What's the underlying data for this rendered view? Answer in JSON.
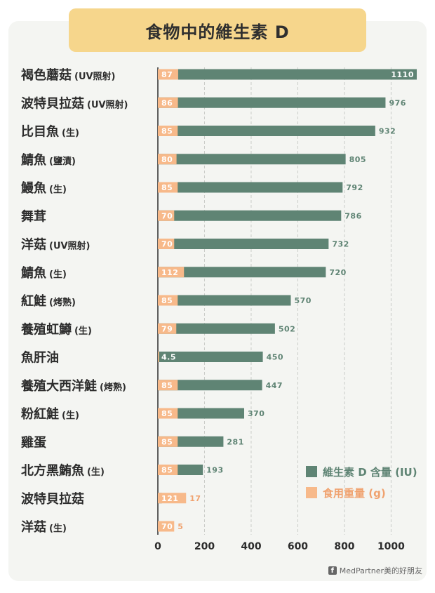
{
  "chart_data": {
    "type": "bar",
    "orientation": "horizontal",
    "title": "食物中的維生素 D",
    "categories": [
      {
        "name": "褐色蘑菇",
        "note": "(UV照射)"
      },
      {
        "name": "波特貝拉菇",
        "note": "(UV照射)"
      },
      {
        "name": "比目魚",
        "note": "(生)"
      },
      {
        "name": "鯖魚",
        "note": "(鹽漬)"
      },
      {
        "name": "鰻魚",
        "note": "(生)"
      },
      {
        "name": "舞茸",
        "note": ""
      },
      {
        "name": "洋菇",
        "note": "(UV照射)"
      },
      {
        "name": "鯖魚",
        "note": "(生)"
      },
      {
        "name": "紅鮭",
        "note": "(烤熟)"
      },
      {
        "name": "養殖虹鱒",
        "note": "(生)"
      },
      {
        "name": "魚肝油",
        "note": ""
      },
      {
        "name": "養殖大西洋鮭",
        "note": "(烤熟)"
      },
      {
        "name": "粉紅鮭",
        "note": "(生)"
      },
      {
        "name": "雞蛋",
        "note": ""
      },
      {
        "name": "北方黑鮪魚",
        "note": "(生)"
      },
      {
        "name": "波特貝拉菇",
        "note": ""
      },
      {
        "name": "洋菇",
        "note": "(生)"
      }
    ],
    "series": [
      {
        "name": "維生素 D 含量 (IU)",
        "color": "#5f8474",
        "values": [
          1110,
          976,
          932,
          805,
          792,
          786,
          732,
          720,
          570,
          502,
          450,
          447,
          370,
          281,
          193,
          17,
          5
        ]
      },
      {
        "name": "食用重量 (g)",
        "color": "#f7b98a",
        "values": [
          87,
          86,
          85,
          80,
          85,
          70,
          70,
          112,
          85,
          79,
          4.5,
          85,
          85,
          85,
          85,
          121,
          70
        ]
      }
    ],
    "value_labels_vitd": [
      "1110",
      "976",
      "932",
      "805",
      "792",
      "786",
      "732",
      "720",
      "570",
      "502",
      "450",
      "447",
      "370",
      "281",
      "193",
      "17",
      "5"
    ],
    "value_labels_weight": [
      "87",
      "86",
      "85",
      "80",
      "85",
      "70",
      "70",
      "112",
      "85",
      "79",
      "4.5",
      "85",
      "85",
      "85",
      "85",
      "121",
      "70"
    ],
    "xlim": [
      0,
      1110
    ],
    "xticks": [
      0,
      200,
      400,
      600,
      800,
      1000
    ],
    "xtick_labels": [
      "0",
      "200",
      "400",
      "600",
      "800",
      "1000"
    ],
    "grid": "vertical-dashed",
    "legend_position": "bottom-right"
  },
  "footer": {
    "credit": "MedPartner美的好朋友",
    "icon": "facebook-icon"
  }
}
